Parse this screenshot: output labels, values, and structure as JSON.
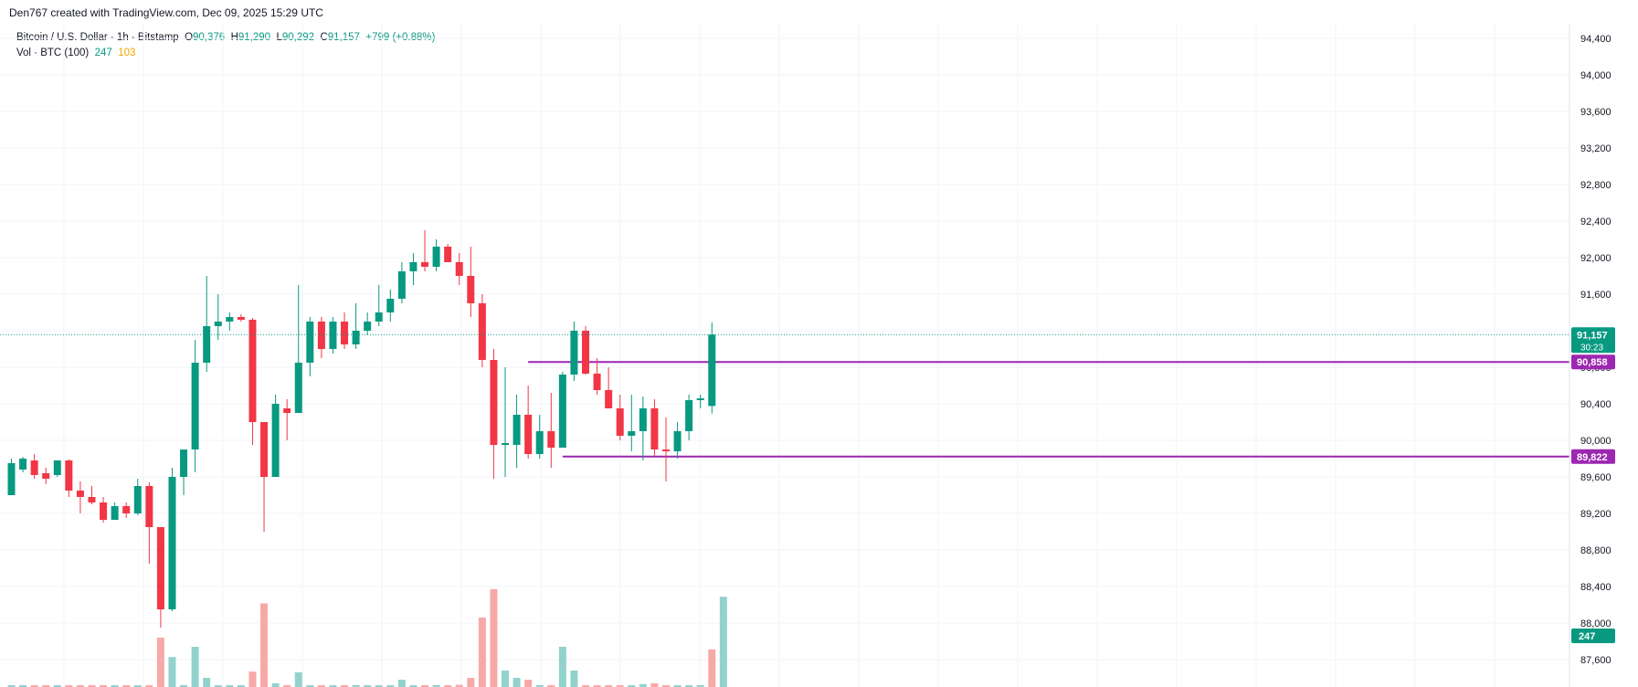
{
  "attribution": "Den767 created with TradingView.com, Dec 09, 2025 15:29 UTC",
  "legend": {
    "symbol": "Bitcoin / U.S. Dollar · 1h · Bitstamp",
    "o_label": "O",
    "o_value": "90,376",
    "h_label": "H",
    "h_value": "91,290",
    "l_label": "L",
    "l_value": "90,292",
    "c_label": "C",
    "c_value": "91,157",
    "change": "+799 (+0.88%)",
    "vol_label": "Vol · BTC (100)",
    "vol_value1": "247",
    "vol_value2": "103"
  },
  "colors": {
    "up": "#089981",
    "down": "#f23645",
    "vol_up": "#92d2cc",
    "vol_down": "#f7a9a7",
    "level": "#9c27b0",
    "grid": "#f0f3fa"
  },
  "tags": {
    "price": "91,157",
    "countdown": "30:23",
    "resistance": "90,858",
    "support": "89,822",
    "volume": "247"
  },
  "chart_data": {
    "type": "candlestick",
    "timeframe": "1h",
    "y_ticks": [
      "94,400",
      "94,000",
      "93,600",
      "93,200",
      "92,800",
      "92,400",
      "92,000",
      "91,600",
      "91,200",
      "90,800",
      "90,400",
      "90,000",
      "89,600",
      "89,200",
      "88,800",
      "88,400",
      "88,000",
      "87,600"
    ],
    "ylim": [
      87400,
      94600
    ],
    "levels": [
      {
        "price": 90858,
        "from_index": 45
      },
      {
        "price": 89822,
        "from_index": 48
      }
    ],
    "candles": [
      {
        "o": 89400,
        "h": 89800,
        "l": 89400,
        "c": 89750
      },
      {
        "o": 89680,
        "h": 89820,
        "l": 89650,
        "c": 89800
      },
      {
        "o": 89780,
        "h": 89850,
        "l": 89580,
        "c": 89620
      },
      {
        "o": 89640,
        "h": 89700,
        "l": 89520,
        "c": 89580
      },
      {
        "o": 89620,
        "h": 89780,
        "l": 89600,
        "c": 89780
      },
      {
        "o": 89780,
        "h": 89790,
        "l": 89380,
        "c": 89450
      },
      {
        "o": 89450,
        "h": 89550,
        "l": 89200,
        "c": 89380
      },
      {
        "o": 89380,
        "h": 89500,
        "l": 89300,
        "c": 89320
      },
      {
        "o": 89320,
        "h": 89380,
        "l": 89100,
        "c": 89130
      },
      {
        "o": 89130,
        "h": 89320,
        "l": 89130,
        "c": 89280
      },
      {
        "o": 89280,
        "h": 89320,
        "l": 89150,
        "c": 89200
      },
      {
        "o": 89200,
        "h": 89580,
        "l": 89180,
        "c": 89500
      },
      {
        "o": 89500,
        "h": 89540,
        "l": 88650,
        "c": 89050
      },
      {
        "o": 89050,
        "h": 89050,
        "l": 87950,
        "c": 88150
      },
      {
        "o": 88150,
        "h": 89700,
        "l": 88130,
        "c": 89600
      },
      {
        "o": 89600,
        "h": 89900,
        "l": 89400,
        "c": 89900
      },
      {
        "o": 89900,
        "h": 91100,
        "l": 89650,
        "c": 90850
      },
      {
        "o": 90850,
        "h": 91800,
        "l": 90750,
        "c": 91250
      },
      {
        "o": 91250,
        "h": 91600,
        "l": 91100,
        "c": 91300
      },
      {
        "o": 91300,
        "h": 91400,
        "l": 91200,
        "c": 91350
      },
      {
        "o": 91350,
        "h": 91380,
        "l": 91300,
        "c": 91320
      },
      {
        "o": 91320,
        "h": 91340,
        "l": 89950,
        "c": 90200
      },
      {
        "o": 90200,
        "h": 90200,
        "l": 89000,
        "c": 89600
      },
      {
        "o": 89600,
        "h": 90500,
        "l": 89600,
        "c": 90400
      },
      {
        "o": 90350,
        "h": 90450,
        "l": 90000,
        "c": 90300
      },
      {
        "o": 90300,
        "h": 91700,
        "l": 90300,
        "c": 90850
      },
      {
        "o": 90850,
        "h": 91350,
        "l": 90700,
        "c": 91300
      },
      {
        "o": 91300,
        "h": 91350,
        "l": 90900,
        "c": 91000
      },
      {
        "o": 91000,
        "h": 91350,
        "l": 90950,
        "c": 91300
      },
      {
        "o": 91300,
        "h": 91400,
        "l": 91000,
        "c": 91050
      },
      {
        "o": 91050,
        "h": 91500,
        "l": 91000,
        "c": 91200
      },
      {
        "o": 91200,
        "h": 91400,
        "l": 91150,
        "c": 91300
      },
      {
        "o": 91300,
        "h": 91700,
        "l": 91250,
        "c": 91400
      },
      {
        "o": 91400,
        "h": 91650,
        "l": 91300,
        "c": 91550
      },
      {
        "o": 91550,
        "h": 91950,
        "l": 91500,
        "c": 91850
      },
      {
        "o": 91850,
        "h": 92050,
        "l": 91700,
        "c": 91950
      },
      {
        "o": 91950,
        "h": 92300,
        "l": 91850,
        "c": 91900
      },
      {
        "o": 91900,
        "h": 92200,
        "l": 91850,
        "c": 92120
      },
      {
        "o": 92120,
        "h": 92150,
        "l": 91950,
        "c": 91950
      },
      {
        "o": 91950,
        "h": 92050,
        "l": 91700,
        "c": 91800
      },
      {
        "o": 91800,
        "h": 92120,
        "l": 91350,
        "c": 91500
      },
      {
        "o": 91500,
        "h": 91600,
        "l": 90800,
        "c": 90880
      },
      {
        "o": 90880,
        "h": 91000,
        "l": 89580,
        "c": 89950
      },
      {
        "o": 89950,
        "h": 90800,
        "l": 89600,
        "c": 89970
      },
      {
        "o": 89950,
        "h": 90500,
        "l": 89700,
        "c": 90280
      },
      {
        "o": 90280,
        "h": 90600,
        "l": 89800,
        "c": 89850
      },
      {
        "o": 89850,
        "h": 90280,
        "l": 89800,
        "c": 90100
      },
      {
        "o": 90100,
        "h": 90520,
        "l": 89700,
        "c": 89920
      },
      {
        "o": 89920,
        "h": 90750,
        "l": 89920,
        "c": 90720
      },
      {
        "o": 90720,
        "h": 91300,
        "l": 90650,
        "c": 91200
      },
      {
        "o": 91200,
        "h": 91250,
        "l": 90720,
        "c": 90730
      },
      {
        "o": 90730,
        "h": 90900,
        "l": 90500,
        "c": 90550
      },
      {
        "o": 90550,
        "h": 90800,
        "l": 90400,
        "c": 90350
      },
      {
        "o": 90350,
        "h": 90500,
        "l": 90000,
        "c": 90050
      },
      {
        "o": 90050,
        "h": 90500,
        "l": 89880,
        "c": 90100
      },
      {
        "o": 90100,
        "h": 90480,
        "l": 89780,
        "c": 90350
      },
      {
        "o": 90350,
        "h": 90450,
        "l": 89830,
        "c": 89900
      },
      {
        "o": 89900,
        "h": 90250,
        "l": 89550,
        "c": 89880
      },
      {
        "o": 89880,
        "h": 90200,
        "l": 89800,
        "c": 90100
      },
      {
        "o": 90100,
        "h": 90500,
        "l": 90000,
        "c": 90440
      },
      {
        "o": 90440,
        "h": 90500,
        "l": 90350,
        "c": 90460
      }
    ],
    "volumes": [
      {
        "v": 5,
        "d": "up"
      },
      {
        "v": 4,
        "d": "up"
      },
      {
        "v": 4,
        "d": "down"
      },
      {
        "v": 3,
        "d": "down"
      },
      {
        "v": 3,
        "d": "up"
      },
      {
        "v": 3,
        "d": "down"
      },
      {
        "v": 2,
        "d": "down"
      },
      {
        "v": 2,
        "d": "down"
      },
      {
        "v": 2,
        "d": "down"
      },
      {
        "v": 2,
        "d": "up"
      },
      {
        "v": 2,
        "d": "down"
      },
      {
        "v": 2,
        "d": "up"
      },
      {
        "v": 5,
        "d": "down"
      },
      {
        "v": 135,
        "d": "down"
      },
      {
        "v": 82,
        "d": "up"
      },
      {
        "v": 4,
        "d": "up"
      },
      {
        "v": 110,
        "d": "up"
      },
      {
        "v": 25,
        "d": "up"
      },
      {
        "v": 4,
        "d": "up"
      },
      {
        "v": 3,
        "d": "up"
      },
      {
        "v": 5,
        "d": "up"
      },
      {
        "v": 42,
        "d": "down"
      },
      {
        "v": 229,
        "d": "down"
      },
      {
        "v": 10,
        "d": "up"
      },
      {
        "v": 4,
        "d": "down"
      },
      {
        "v": 40,
        "d": "up"
      },
      {
        "v": 5,
        "d": "up"
      },
      {
        "v": 3,
        "d": "down"
      },
      {
        "v": 3,
        "d": "up"
      },
      {
        "v": 2,
        "d": "down"
      },
      {
        "v": 2,
        "d": "up"
      },
      {
        "v": 3,
        "d": "up"
      },
      {
        "v": 2,
        "d": "up"
      },
      {
        "v": 2,
        "d": "up"
      },
      {
        "v": 20,
        "d": "up"
      },
      {
        "v": 4,
        "d": "up"
      },
      {
        "v": 3,
        "d": "down"
      },
      {
        "v": 3,
        "d": "up"
      },
      {
        "v": 4,
        "d": "down"
      },
      {
        "v": 6,
        "d": "down"
      },
      {
        "v": 25,
        "d": "down"
      },
      {
        "v": 190,
        "d": "down"
      },
      {
        "v": 268,
        "d": "down"
      },
      {
        "v": 45,
        "d": "up"
      },
      {
        "v": 25,
        "d": "up"
      },
      {
        "v": 20,
        "d": "down"
      },
      {
        "v": 5,
        "d": "up"
      },
      {
        "v": 4,
        "d": "down"
      },
      {
        "v": 110,
        "d": "up"
      },
      {
        "v": 45,
        "d": "up"
      },
      {
        "v": 5,
        "d": "down"
      },
      {
        "v": 3,
        "d": "down"
      },
      {
        "v": 2,
        "d": "down"
      },
      {
        "v": 2,
        "d": "down"
      },
      {
        "v": 3,
        "d": "up"
      },
      {
        "v": 8,
        "d": "up"
      },
      {
        "v": 10,
        "d": "down"
      },
      {
        "v": 4,
        "d": "down"
      },
      {
        "v": 4,
        "d": "up"
      },
      {
        "v": 3,
        "d": "up"
      },
      {
        "v": 5,
        "d": "up"
      }
    ],
    "partial_candle": {
      "o": 90376,
      "h": 91290,
      "l": 90292,
      "c": 91157
    },
    "partial_volumes": [
      {
        "v": 103,
        "d": "down"
      },
      {
        "v": 247,
        "d": "up"
      }
    ]
  }
}
